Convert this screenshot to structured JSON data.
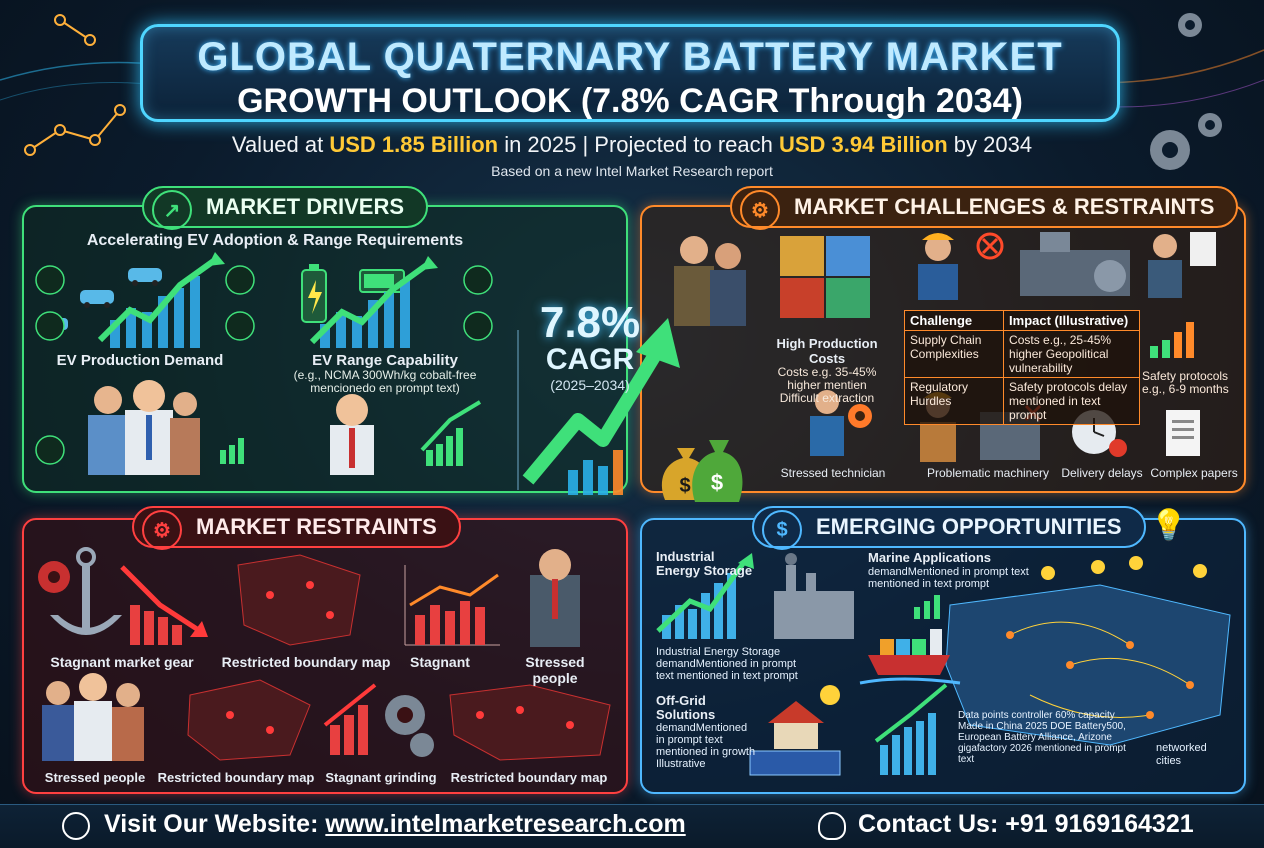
{
  "title": {
    "line1": "GLOBAL QUATERNARY BATTERY MARKET",
    "line2": "GROWTH OUTLOOK (7.8% CAGR Through 2034)"
  },
  "subtitle": {
    "pre": "Valued at ",
    "value_2025": "USD 1.85 Billion",
    "mid": " in 2025 | Projected to reach ",
    "value_2034": "USD 3.94 Billion",
    "post": " by 2034"
  },
  "source_note": "Based on a new Intel Market Research report",
  "drivers": {
    "heading": "MARKET DRIVERS",
    "subheading": "Accelerating EV Adoption & Range Requirements",
    "ev_production": "EV Production Demand",
    "ev_range_title": "EV Range Capability",
    "ev_range_note": "(e.g., NCMA 300Wh/kg cobalt-free mencionedo en prompt text)"
  },
  "cagr": {
    "value": "7.8%",
    "label": "CAGR",
    "years": "(2025–2034)"
  },
  "challenges": {
    "heading": "MARKET CHALLENGES & RESTRAINTS",
    "high_cost_title": "High Production Costs",
    "high_cost_note": "Costs e.g. 35-45% higher mentien Difficult extraction",
    "table_headers": [
      "Challenge",
      "Impact (Illustrative)"
    ],
    "table_rows": [
      [
        "Supply Chain Complexities",
        "Costs e.g., 25-45% higher Geopolitical vulnerability"
      ],
      [
        "Regulatory Hurdles",
        "Safety protocols delay mentioned in text prompt"
      ]
    ],
    "side_note": "Safety protocols e.g., 6-9 months",
    "captions": [
      "Stressed technician",
      "Problematic machinery",
      "Delivery delays",
      "Complex papers"
    ]
  },
  "restraints": {
    "heading": "MARKET RESTRAINTS",
    "captions_top": [
      "Stagnant market gear",
      "Restricted boundary map",
      "Stagnant",
      "Stressed people"
    ],
    "captions_bottom": [
      "Stressed people",
      "Restricted boundary map",
      "Stagnant grinding",
      "Restricted boundary map"
    ]
  },
  "opportunities": {
    "heading": "EMERGING OPPORTUNITIES",
    "industrial_title": "Industrial Energy Storage",
    "industrial_note": "Industrial Energy Storage demandMentioned in prompt text mentioned in text prompt",
    "marine_title": "Marine Applications",
    "marine_note": "demandMentioned in prompt text mentioned in text prompt",
    "offgrid_title": "Off-Grid Solutions",
    "offgrid_note": "demandMentioned in prompt text mentioned in growth Illustrative",
    "data_points": "Data points controller 60% capacity Made in China 2025 DOE Battery500, European Battery Alliance, Arizone gigafactory 2026 mentioned in prompt text",
    "networked": "networked cities"
  },
  "footer": {
    "website_label": "Visit Our Website: ",
    "website_url": "www.intelmarketresearch.com",
    "contact_label": "Contact Us: ",
    "contact_phone": "+91 9169164321"
  },
  "colors": {
    "drivers": "#3fe07a",
    "challenges": "#ff8a2a",
    "restraints": "#ff4040",
    "opportunities": "#4fb8ff",
    "highlight": "#ffc936"
  },
  "icons": [
    "chart-icon",
    "gear-icon",
    "lightbulb-icon",
    "money-bag-icon",
    "globe-icon",
    "headset-icon",
    "battery-icon",
    "car-icon",
    "anchor-icon",
    "factory-icon",
    "ship-icon",
    "house-icon",
    "clock-icon",
    "document-icon",
    "puzzle-icon"
  ]
}
